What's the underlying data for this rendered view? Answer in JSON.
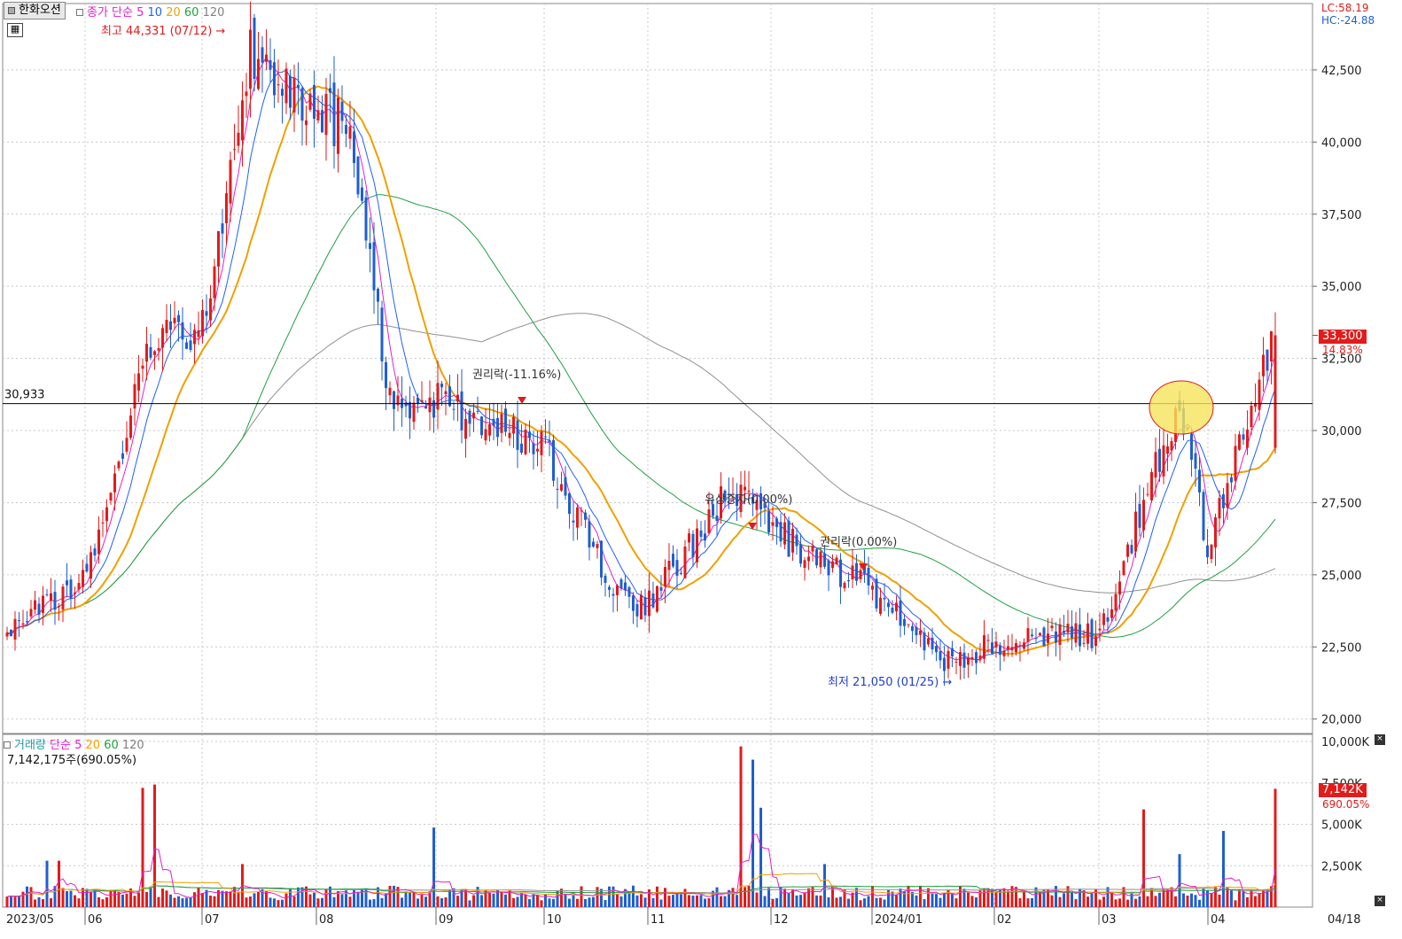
{
  "header": {
    "stock_name": "한화오션",
    "price_ma_label": "종가 단순",
    "ma_periods": [
      "5",
      "10",
      "20",
      "60",
      "120"
    ],
    "ma_colors": [
      "#e020d0",
      "#2060ff",
      "#f0a000",
      "#20a040",
      "#808080"
    ],
    "lc": "LC:58.19",
    "hc": "HC:-24.88"
  },
  "volume_header": {
    "label": "거래량",
    "ma_label": "단순",
    "ma_periods": [
      "5",
      "20",
      "60",
      "120"
    ],
    "ma_colors": [
      "#e020d0",
      "#f0a000",
      "#20a040",
      "#808080"
    ],
    "current": "7,142,175주(690.05%)"
  },
  "colors": {
    "up": "#e21b1b",
    "down": "#1f5fcf",
    "grid": "#c8c8c8",
    "ref_line": "#000000",
    "highlight": "#f5e35a"
  },
  "chart_data": [
    {
      "type": "candlestick",
      "title": "한화오션",
      "x_axis_labels": [
        "2023/05",
        "06",
        "07",
        "08",
        "09",
        "10",
        "11",
        "12",
        "2024/01",
        "02",
        "03",
        "04",
        "04/18"
      ],
      "y_ticks": [
        "42,500",
        "40,000",
        "37,500",
        "35,000",
        "32,500",
        "30,000",
        "27,500",
        "25,000",
        "22,500",
        "20,000"
      ],
      "ylim": [
        19500,
        44800
      ],
      "reference_line": {
        "value": 30933,
        "label": "30,933"
      },
      "current_price": {
        "value": 33300,
        "label": "33,300",
        "change": "14.83%"
      },
      "annotations": [
        {
          "text": "최고 44,331 (07/12)",
          "value": 44331,
          "kind": "high"
        },
        {
          "text": "최저 21,050 (01/25)",
          "value": 21050,
          "kind": "low"
        },
        {
          "text": "권리락(-11.16%)",
          "kind": "event"
        },
        {
          "text": "유상증자(0.00%)",
          "kind": "event"
        },
        {
          "text": "권리락(0.00%)",
          "kind": "event"
        }
      ],
      "series": [
        {
          "name": "종가",
          "points": [
            {
              "d": "2023/05",
              "close": 23000
            },
            {
              "d": "06",
              "close": 25000
            },
            {
              "d": "06/20",
              "close": 33500
            },
            {
              "d": "07",
              "close": 33500
            },
            {
              "d": "07/12",
              "close": 43000
            },
            {
              "d": "08",
              "close": 41000
            },
            {
              "d": "08/15",
              "close": 40500
            },
            {
              "d": "08/25",
              "close": 31000
            },
            {
              "d": "09",
              "close": 31000
            },
            {
              "d": "10",
              "close": 29500
            },
            {
              "d": "10/20",
              "close": 24000
            },
            {
              "d": "11",
              "close": 24000
            },
            {
              "d": "11/20",
              "close": 28000
            },
            {
              "d": "12",
              "close": 26500
            },
            {
              "d": "2024/01",
              "close": 24500
            },
            {
              "d": "01/25",
              "close": 22000
            },
            {
              "d": "02",
              "close": 22500
            },
            {
              "d": "03",
              "close": 23000
            },
            {
              "d": "03/20",
              "close": 31000
            },
            {
              "d": "04",
              "close": 26000
            },
            {
              "d": "04/18",
              "close": 33300
            }
          ]
        }
      ]
    },
    {
      "type": "bar",
      "title": "거래량",
      "y_ticks": [
        "10,000K",
        "7,500K",
        "5,000K",
        "2,500K"
      ],
      "ylim": [
        0,
        10000
      ],
      "unit": "K",
      "current_volume": {
        "label": "7,142K",
        "change": "690.05%"
      },
      "peaks": [
        {
          "d": "06",
          "value": 7200
        },
        {
          "d": "08/25",
          "value": 4800
        },
        {
          "d": "11/20",
          "value": 9700
        },
        {
          "d": "03/15",
          "value": 5900
        },
        {
          "d": "04/18",
          "value": 7142
        }
      ]
    }
  ]
}
